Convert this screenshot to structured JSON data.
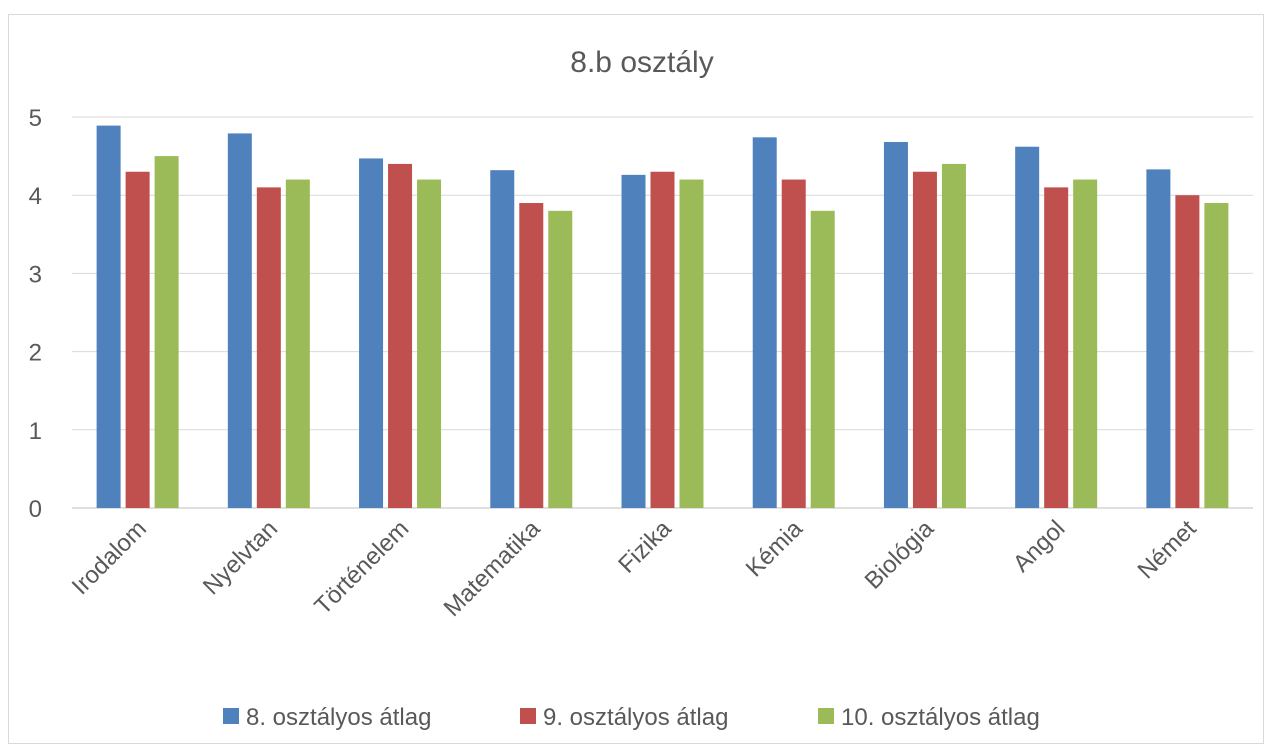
{
  "chart_data": {
    "type": "bar",
    "title": "8.b osztály",
    "xlabel": "",
    "ylabel": "",
    "ylim": [
      0,
      5
    ],
    "yticks": [
      "0",
      "1",
      "2",
      "3",
      "4",
      "5"
    ],
    "grid": true,
    "legend_position": "bottom",
    "categories": [
      "Irodalom",
      "Nyelvtan",
      "Történelem",
      "Matematika",
      "Fizika",
      "Kémia",
      "Biológia",
      "Angol",
      "Német"
    ],
    "series": [
      {
        "name": "8. osztályos átlag",
        "color": "#4f81bd",
        "values": [
          4.89,
          4.79,
          4.47,
          4.32,
          4.26,
          4.74,
          4.68,
          4.62,
          4.33
        ]
      },
      {
        "name": "9. osztályos átlag",
        "color": "#c0504d",
        "values": [
          4.3,
          4.1,
          4.4,
          3.9,
          4.3,
          4.2,
          4.3,
          4.1,
          4.0
        ]
      },
      {
        "name": "10. osztályos átlag",
        "color": "#9bbb59",
        "values": [
          4.5,
          4.2,
          4.2,
          3.8,
          4.2,
          3.8,
          4.4,
          4.2,
          3.9
        ]
      }
    ]
  }
}
